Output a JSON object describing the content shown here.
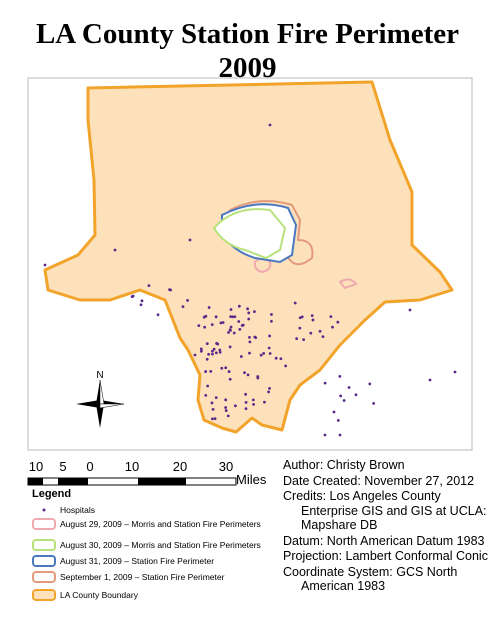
{
  "title": [
    "LA County Station Fire Perimeter",
    "2009"
  ],
  "north_arrow": "N",
  "scale_bar": {
    "labels": [
      "10",
      "5",
      "0",
      "10",
      "20",
      "30"
    ],
    "unit": "Miles"
  },
  "legend": {
    "title": "Legend",
    "items": [
      "Hospitals",
      "August 29, 2009 – Morris and Station Fire Perimeters",
      "August 30, 2009 – Morris and Station Fire Perimeters",
      "August 31, 2009 – Station Fire Perimeter",
      "September 1, 2009 – Station Fire Perimeter",
      "LA County Boundary"
    ]
  },
  "info": [
    "Author: Christy Brown",
    "Date Created: November 27, 2012",
    "Credits: Los Angeles County Enterprise GIS and GIS at UCLA: Mapshare DB",
    "Datum: North American Datum 1983",
    "Projection: Lambert Conformal Conic",
    "Coordinate System: GCS North American 1983"
  ]
}
